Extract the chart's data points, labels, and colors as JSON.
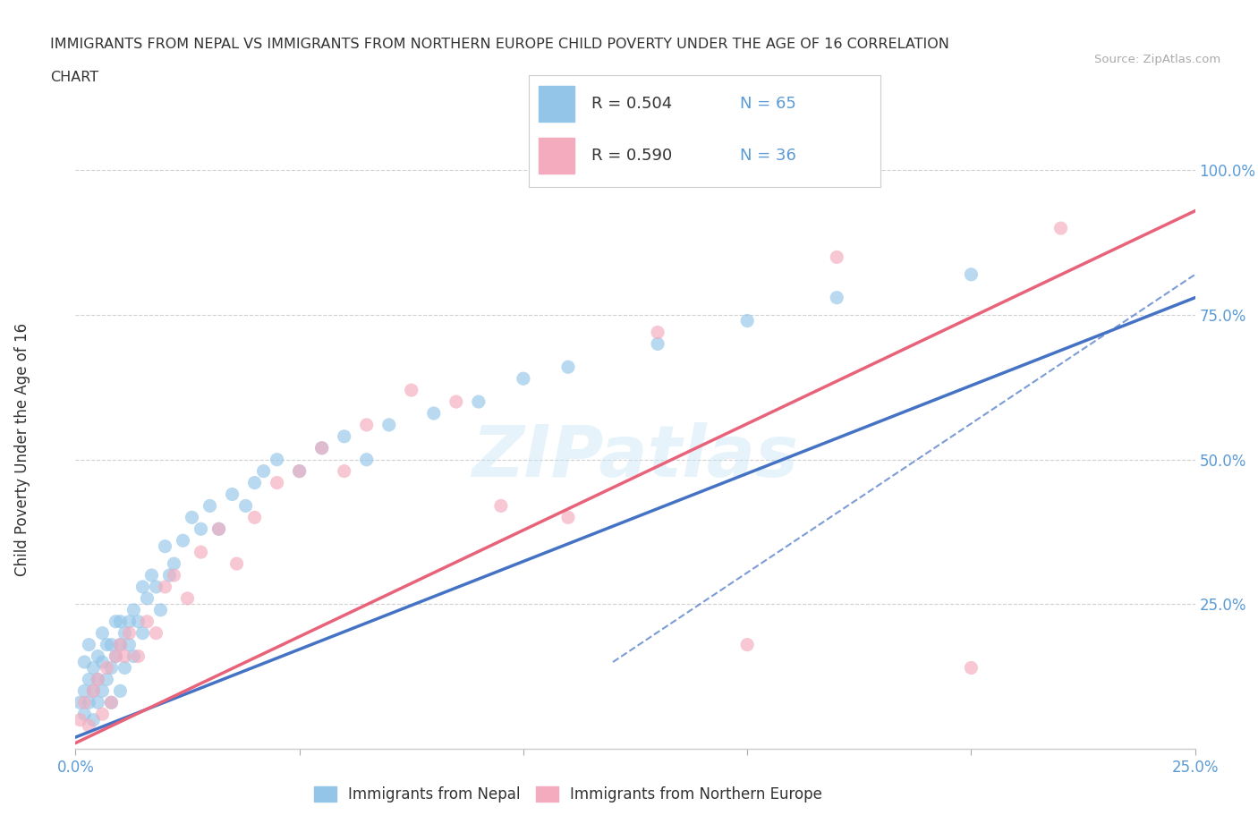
{
  "title_line1": "IMMIGRANTS FROM NEPAL VS IMMIGRANTS FROM NORTHERN EUROPE CHILD POVERTY UNDER THE AGE OF 16 CORRELATION",
  "title_line2": "CHART",
  "source_text": "Source: ZipAtlas.com",
  "ylabel": "Child Poverty Under the Age of 16",
  "watermark": "ZIPatlas",
  "nepal_color": "#92C5E8",
  "nepal_color_line": "#4472C4",
  "north_europe_color": "#F4ABBE",
  "north_europe_color_line": "#E8637A",
  "r_nepal": 0.504,
  "n_nepal": 65,
  "r_north_europe": 0.59,
  "n_north_europe": 36,
  "xmin": 0.0,
  "xmax": 0.25,
  "ymin": 0.0,
  "ymax": 1.05,
  "xtick_positions": [
    0.0,
    0.05,
    0.1,
    0.15,
    0.2,
    0.25
  ],
  "xtick_labels": [
    "0.0%",
    "",
    "",
    "",
    "",
    "25.0%"
  ],
  "ytick_positions": [
    0.0,
    0.25,
    0.5,
    0.75,
    1.0
  ],
  "ytick_labels": [
    "",
    "25.0%",
    "50.0%",
    "75.0%",
    "100.0%"
  ],
  "legend_nepal_label": "Immigrants from Nepal",
  "legend_north_europe_label": "Immigrants from Northern Europe",
  "background_color": "#FFFFFF",
  "grid_color": "#CCCCCC",
  "title_color": "#333333",
  "tick_label_color": "#5B9BD5",
  "nepal_scatter_x": [
    0.001,
    0.002,
    0.002,
    0.002,
    0.003,
    0.003,
    0.003,
    0.004,
    0.004,
    0.004,
    0.005,
    0.005,
    0.005,
    0.006,
    0.006,
    0.006,
    0.007,
    0.007,
    0.008,
    0.008,
    0.008,
    0.009,
    0.009,
    0.01,
    0.01,
    0.01,
    0.011,
    0.011,
    0.012,
    0.012,
    0.013,
    0.013,
    0.014,
    0.015,
    0.015,
    0.016,
    0.017,
    0.018,
    0.019,
    0.02,
    0.021,
    0.022,
    0.024,
    0.026,
    0.028,
    0.03,
    0.032,
    0.035,
    0.038,
    0.04,
    0.042,
    0.045,
    0.05,
    0.055,
    0.06,
    0.065,
    0.07,
    0.08,
    0.09,
    0.1,
    0.11,
    0.13,
    0.15,
    0.17,
    0.2
  ],
  "nepal_scatter_y": [
    0.08,
    0.06,
    0.1,
    0.15,
    0.08,
    0.12,
    0.18,
    0.1,
    0.14,
    0.05,
    0.12,
    0.16,
    0.08,
    0.15,
    0.1,
    0.2,
    0.12,
    0.18,
    0.14,
    0.18,
    0.08,
    0.16,
    0.22,
    0.18,
    0.22,
    0.1,
    0.2,
    0.14,
    0.22,
    0.18,
    0.24,
    0.16,
    0.22,
    0.28,
    0.2,
    0.26,
    0.3,
    0.28,
    0.24,
    0.35,
    0.3,
    0.32,
    0.36,
    0.4,
    0.38,
    0.42,
    0.38,
    0.44,
    0.42,
    0.46,
    0.48,
    0.5,
    0.48,
    0.52,
    0.54,
    0.5,
    0.56,
    0.58,
    0.6,
    0.64,
    0.66,
    0.7,
    0.74,
    0.78,
    0.82
  ],
  "ne_scatter_x": [
    0.001,
    0.002,
    0.003,
    0.004,
    0.005,
    0.006,
    0.007,
    0.008,
    0.009,
    0.01,
    0.011,
    0.012,
    0.014,
    0.016,
    0.018,
    0.02,
    0.022,
    0.025,
    0.028,
    0.032,
    0.036,
    0.04,
    0.045,
    0.05,
    0.055,
    0.06,
    0.065,
    0.075,
    0.085,
    0.095,
    0.11,
    0.13,
    0.15,
    0.17,
    0.2,
    0.22
  ],
  "ne_scatter_y": [
    0.05,
    0.08,
    0.04,
    0.1,
    0.12,
    0.06,
    0.14,
    0.08,
    0.16,
    0.18,
    0.16,
    0.2,
    0.16,
    0.22,
    0.2,
    0.28,
    0.3,
    0.26,
    0.34,
    0.38,
    0.32,
    0.4,
    0.46,
    0.48,
    0.52,
    0.48,
    0.56,
    0.62,
    0.6,
    0.42,
    0.4,
    0.72,
    0.18,
    0.85,
    0.14,
    0.9
  ],
  "nepal_line_x0": 0.0,
  "nepal_line_x1": 0.25,
  "nepal_line_y0": 0.02,
  "nepal_line_y1": 0.78,
  "ne_line_x0": 0.0,
  "ne_line_x1": 0.25,
  "ne_line_y0": 0.01,
  "ne_line_y1": 0.93,
  "dash_line_y0": 0.15,
  "dash_line_y1": 0.82
}
